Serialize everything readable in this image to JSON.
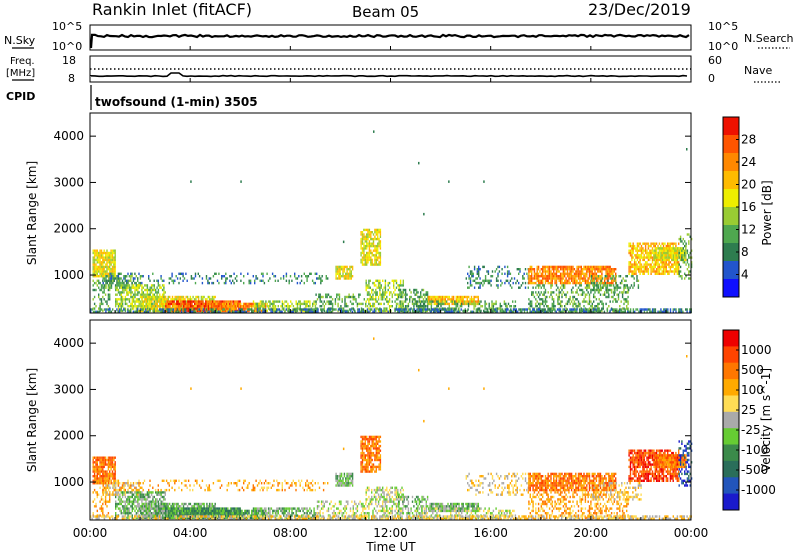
{
  "header": {
    "station": "Rankin Inlet (fitACF)",
    "beam": "Beam 05",
    "date": "23/Dec/2019"
  },
  "panels": {
    "noise": {
      "left_label": "N.Sky",
      "right_label": "N.Search",
      "left_ticks": [
        "10^5",
        "10^0"
      ],
      "right_ticks": [
        "10^5",
        "10^0"
      ]
    },
    "freq": {
      "left_label_1": "Freq.",
      "left_label_2": "[MHz]",
      "right_label": "Nave",
      "left_ticks": [
        "18",
        "8"
      ],
      "right_ticks": [
        "60",
        "0"
      ]
    },
    "cpid": {
      "label": "CPID",
      "mode": "twofsound (1-min) 3505"
    }
  },
  "chart_data": [
    {
      "type": "heatmap",
      "name": "power",
      "ylabel": "Slant Range [km]",
      "y_ticks": [
        "4000",
        "3000",
        "2000",
        "1000"
      ],
      "y_range": [
        180,
        4500
      ],
      "colorbar": {
        "label": "Power [dB]",
        "ticks": [
          "28",
          "24",
          "20",
          "16",
          "12",
          "8",
          "4"
        ],
        "colors": [
          "#1010ff",
          "#2255cc",
          "#2e7d4f",
          "#4fa84f",
          "#99cc33",
          "#eeee00",
          "#ffbb00",
          "#ff8800",
          "#ff5500",
          "#ee1100"
        ]
      }
    },
    {
      "type": "heatmap",
      "name": "velocity",
      "ylabel": "Slant Range [km]",
      "y_ticks": [
        "4000",
        "3000",
        "2000",
        "1000"
      ],
      "y_range": [
        180,
        4500
      ],
      "colorbar": {
        "label": "Velocity [m s^-1]",
        "ticks": [
          "1000",
          "500",
          "100",
          "25",
          "-25",
          "-100",
          "-500",
          "-1000"
        ],
        "colors": [
          "#1a1acc",
          "#2255bb",
          "#2a6e5a",
          "#3b8a4a",
          "#66cc33",
          "#aaaaaa",
          "#ffdd55",
          "#ffaa00",
          "#ff7700",
          "#ff4400",
          "#ee0000"
        ]
      }
    }
  ],
  "x_axis": {
    "ticks": [
      "00:00",
      "04:00",
      "08:00",
      "12:00",
      "16:00",
      "20:00",
      "00:00"
    ],
    "label": "Time UT",
    "range_hours": [
      0,
      24
    ]
  }
}
